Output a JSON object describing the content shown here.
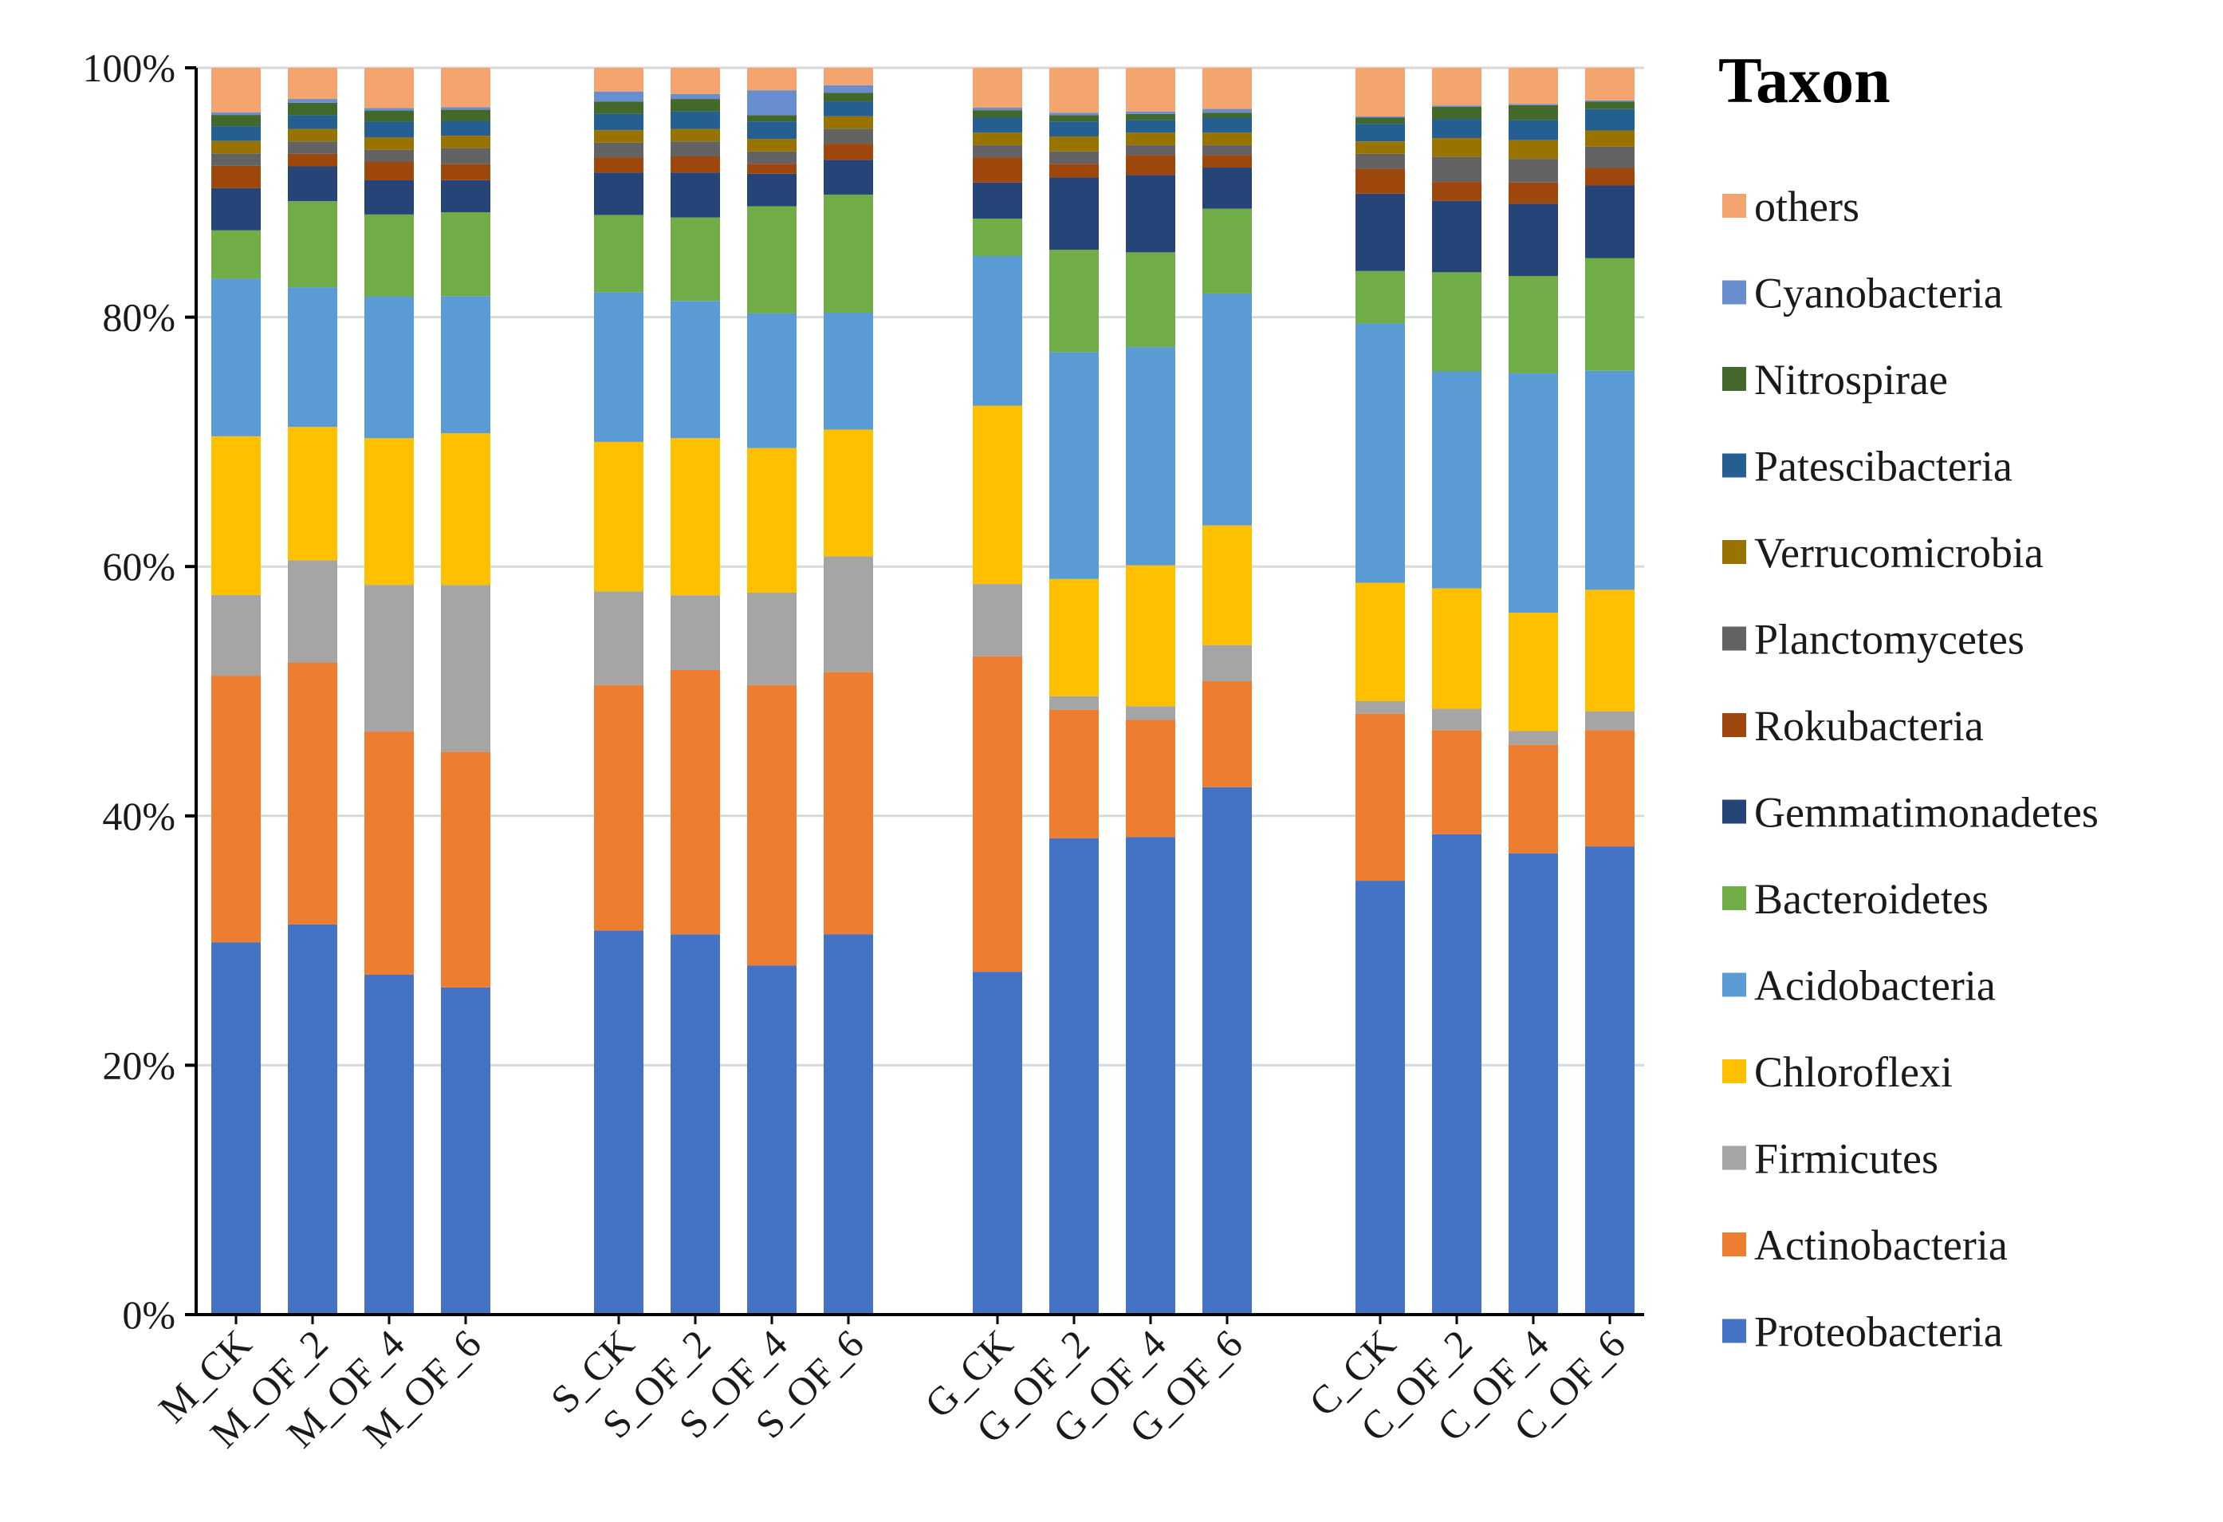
{
  "chart_data": {
    "type": "bar",
    "stacked": true,
    "percent": true,
    "title": "",
    "xlabel": "",
    "ylabel": "",
    "ylim": [
      0,
      100
    ],
    "y_ticks": [
      "0%",
      "20%",
      "40%",
      "60%",
      "80%",
      "100%"
    ],
    "y_tick_values": [
      0,
      20,
      40,
      60,
      80,
      100
    ],
    "grid": true,
    "legend_title": "Taxon",
    "legend_position": "right",
    "categories": [
      "M_CK",
      "M_OF_2",
      "M_OF_4",
      "M_OF_6",
      "S_CK",
      "S_OF_2",
      "S_OF_4",
      "S_OF_6",
      "G_CK",
      "G_OF_2",
      "G_OF_4",
      "G_OF_6",
      "C_CK",
      "C_OF_2",
      "C_OF_4",
      "C_OF_6"
    ],
    "groups": [
      [
        "M_CK",
        "M_OF_2",
        "M_OF_4",
        "M_OF_6"
      ],
      [
        "S_CK",
        "S_OF_2",
        "S_OF_4",
        "S_OF_6"
      ],
      [
        "G_CK",
        "G_OF_2",
        "G_OF_4",
        "G_OF_6"
      ],
      [
        "C_CK",
        "C_OF_2",
        "C_OF_4",
        "C_OF_6"
      ]
    ],
    "series": [
      {
        "name": "Proteobacteria",
        "color": "#4472C4",
        "values": [
          30.0,
          31.3,
          27.8,
          26.5,
          30.8,
          30.5,
          28.0,
          30.6,
          27.5,
          38.2,
          38.3,
          42.3,
          34.8,
          38.3,
          37.0,
          37.4
        ]
      },
      {
        "name": "Actinobacteria",
        "color": "#ED7D31",
        "values": [
          21.5,
          21.0,
          19.9,
          19.1,
          19.7,
          21.2,
          22.5,
          21.1,
          25.3,
          10.3,
          9.4,
          8.5,
          13.4,
          8.3,
          8.7,
          9.3
        ]
      },
      {
        "name": "Firmicutes",
        "color": "#A5A5A5",
        "values": [
          6.5,
          8.2,
          12.0,
          13.5,
          7.5,
          6.0,
          7.4,
          9.3,
          5.8,
          1.1,
          1.1,
          2.9,
          1.0,
          1.7,
          1.1,
          1.5
        ]
      },
      {
        "name": "Chloroflexi",
        "color": "#FFC000",
        "values": [
          12.8,
          10.7,
          12.0,
          12.3,
          12.0,
          12.6,
          11.6,
          10.2,
          14.3,
          9.4,
          11.3,
          9.6,
          9.5,
          9.6,
          9.5,
          9.7
        ]
      },
      {
        "name": "Acidobacteria",
        "color": "#5B9BD5",
        "values": [
          12.7,
          11.2,
          11.6,
          11.1,
          12.0,
          11.0,
          10.8,
          9.4,
          12.0,
          18.2,
          17.5,
          18.6,
          20.8,
          17.3,
          19.2,
          17.5
        ]
      },
      {
        "name": "Bacteroidetes",
        "color": "#70AD47",
        "values": [
          3.9,
          6.9,
          6.7,
          6.8,
          6.2,
          6.7,
          8.6,
          9.5,
          3.0,
          8.2,
          7.6,
          6.8,
          4.2,
          7.9,
          7.8,
          9.0
        ]
      },
      {
        "name": "Gemmatimonadetes",
        "color": "#264478",
        "values": [
          3.4,
          2.8,
          2.8,
          2.6,
          3.4,
          3.6,
          2.6,
          2.8,
          2.9,
          5.8,
          6.2,
          3.3,
          6.2,
          5.7,
          5.8,
          5.8
        ]
      },
      {
        "name": "Rokubacteria",
        "color": "#9E480E",
        "values": [
          1.8,
          1.0,
          1.5,
          1.3,
          1.2,
          1.3,
          0.8,
          1.3,
          2.0,
          1.1,
          1.6,
          1.0,
          2.0,
          1.5,
          1.7,
          1.4
        ]
      },
      {
        "name": "Planctomycetes",
        "color": "#636363",
        "values": [
          1.0,
          1.0,
          1.0,
          1.3,
          1.2,
          1.2,
          1.0,
          1.2,
          1.0,
          1.0,
          0.8,
          0.8,
          1.2,
          2.0,
          1.9,
          1.7
        ]
      },
      {
        "name": "Verrucomicrobia",
        "color": "#997300",
        "values": [
          1.0,
          1.0,
          1.0,
          1.0,
          1.0,
          1.0,
          1.0,
          1.0,
          1.0,
          1.2,
          1.0,
          1.0,
          1.0,
          1.5,
          1.5,
          1.3
        ]
      },
      {
        "name": "Patescibacteria",
        "color": "#255E91",
        "values": [
          1.2,
          1.1,
          1.3,
          1.2,
          1.3,
          1.4,
          1.4,
          1.2,
          1.2,
          1.2,
          1.0,
          1.2,
          1.4,
          1.5,
          1.6,
          1.7
        ]
      },
      {
        "name": "Nitrospirae",
        "color": "#43682B",
        "values": [
          0.9,
          1.0,
          0.9,
          0.9,
          1.0,
          1.0,
          0.5,
          0.7,
          0.6,
          0.5,
          0.5,
          0.4,
          0.5,
          1.0,
          1.2,
          0.6
        ]
      },
      {
        "name": "Cyanobacteria",
        "color": "#698ED0",
        "values": [
          0.2,
          0.3,
          0.2,
          0.2,
          0.8,
          0.4,
          2.0,
          0.6,
          0.2,
          0.2,
          0.2,
          0.3,
          0.1,
          0.1,
          0.1,
          0.1
        ]
      },
      {
        "name": "others",
        "color": "#F4A46E",
        "values": [
          3.6,
          2.5,
          3.3,
          3.2,
          1.9,
          2.1,
          1.8,
          1.4,
          3.2,
          3.6,
          3.5,
          3.3,
          3.9,
          3.0,
          2.9,
          2.6
        ]
      }
    ]
  }
}
